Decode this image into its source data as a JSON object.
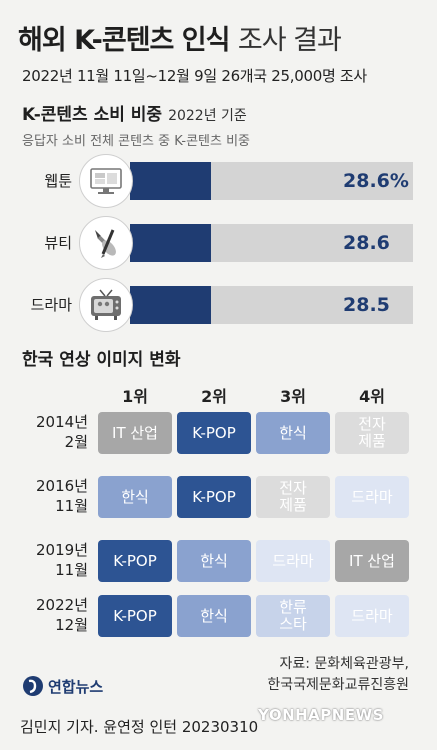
{
  "header": {
    "title_bold": "해외 K-콘텐츠 인식",
    "title_light": "조사 결과",
    "subtitle": "2022년 11월 11일~12월 9일 26개국 25,000명 조사"
  },
  "consumption": {
    "title": "K-콘텐츠 소비 비중",
    "note": "2022년 기준",
    "description": "응답자 소비 전체 콘텐츠 중 K-콘텐츠 비중"
  },
  "ranking": {
    "title": "한국 연상 이미지 변화",
    "rank_headers": [
      "1위",
      "2위",
      "3위",
      "4위"
    ],
    "years": [
      "2014년\n2월",
      "2016년\n11월",
      "2019년\n11월",
      "2022년\n12월"
    ],
    "rows": [
      [
        "IT 산업",
        "K-POP",
        "한식",
        "전자\n제품"
      ],
      [
        "한식",
        "K-POP",
        "전자\n제품",
        "드라마"
      ],
      [
        "K-POP",
        "한식",
        "드라마",
        "IT 산업"
      ],
      [
        "K-POP",
        "한식",
        "한류\n스타",
        "드라마"
      ]
    ],
    "cell_styles": [
      [
        "gray",
        "dark",
        "mid",
        "lgray"
      ],
      [
        "mid",
        "dark",
        "lgray",
        "vlight"
      ],
      [
        "dark",
        "mid",
        "vlight",
        "gray"
      ],
      [
        "dark",
        "mid",
        "light",
        "vlight"
      ]
    ]
  },
  "chart_data": {
    "type": "bar",
    "title": "K-콘텐츠 소비 비중",
    "categories": [
      "웹툰",
      "뷰티",
      "드라마"
    ],
    "values": [
      28.6,
      28.6,
      28.5
    ],
    "value_labels": [
      "28.6%",
      "28.6",
      "28.5"
    ],
    "unit": "%",
    "icons": [
      "monitor-icon",
      "brush-icon",
      "tv-icon"
    ],
    "colors": {
      "bar": "#1f3c72",
      "track": "#d4d4d4"
    },
    "xlim": [
      0,
      100
    ]
  },
  "footer": {
    "source_line1": "자료: 문화체육관광부,",
    "source_line2": "한국국제문화교류진흥원",
    "logo": "연합뉴스",
    "credit": "김민지 기자. 윤연정 인턴  20230310",
    "watermark": "YONHAPNEWS"
  }
}
